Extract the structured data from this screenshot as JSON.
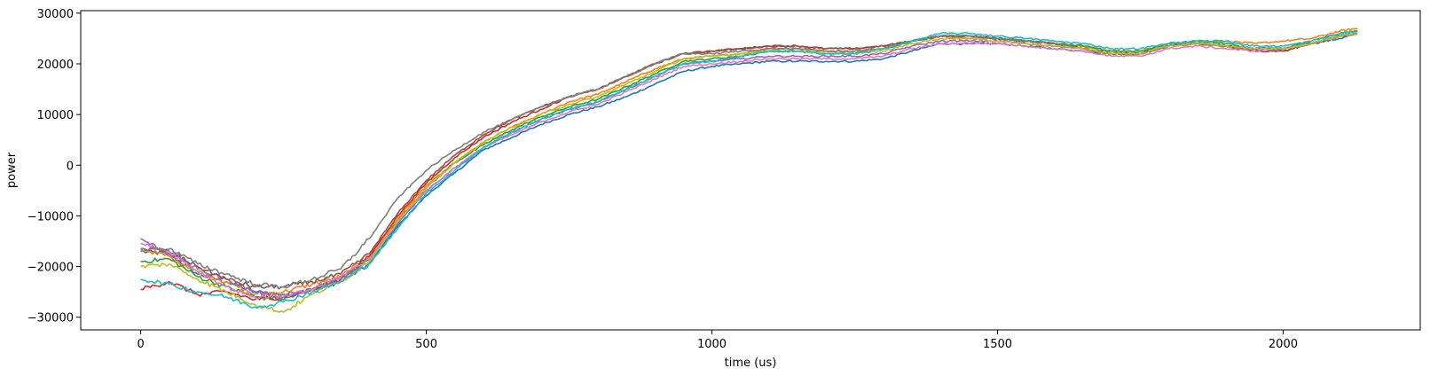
{
  "chart_data": {
    "type": "line",
    "title": "",
    "xlabel": "time (us)",
    "ylabel": "power",
    "xlim": [
      -105,
      2240
    ],
    "ylim": [
      -32500,
      30500
    ],
    "xticks": [
      0,
      500,
      1000,
      1500,
      2000
    ],
    "yticks": [
      -30000,
      -20000,
      -10000,
      0,
      10000,
      20000,
      30000
    ],
    "xtick_labels": [
      "0",
      "500",
      "1000",
      "1500",
      "2000"
    ],
    "ytick_labels": [
      "−30000",
      "−20000",
      "−10000",
      "0",
      "10000",
      "20000",
      "30000"
    ],
    "grid": false,
    "legend": "none",
    "series_count": 10,
    "colors": [
      "#1f77b4",
      "#ff7f0e",
      "#2ca02c",
      "#d62728",
      "#9467bd",
      "#8c564b",
      "#e377c2",
      "#7f7f7f",
      "#bcbd22",
      "#17becf"
    ],
    "x": [
      0,
      50,
      100,
      150,
      200,
      250,
      300,
      350,
      400,
      450,
      500,
      550,
      600,
      650,
      700,
      750,
      800,
      850,
      900,
      950,
      1000,
      1050,
      1100,
      1150,
      1200,
      1250,
      1300,
      1350,
      1400,
      1450,
      1500,
      1550,
      1600,
      1650,
      1700,
      1750,
      1800,
      1850,
      1900,
      1950,
      2000,
      2050,
      2100,
      2130
    ],
    "series": [
      {
        "values": [
          -17000,
          -17500,
          -21500,
          -23000,
          -25000,
          -25500,
          -24500,
          -23000,
          -19500,
          -12000,
          -6000,
          -1500,
          3000,
          5500,
          8000,
          10000,
          11500,
          13500,
          16000,
          18500,
          19500,
          20000,
          20500,
          20500,
          20500,
          20500,
          21000,
          22500,
          24000,
          24000,
          24000,
          23500,
          23000,
          22500,
          22000,
          22000,
          23500,
          24000,
          23500,
          23000,
          23000,
          24000,
          25000,
          26000
        ]
      },
      {
        "values": [
          -16500,
          -18000,
          -21000,
          -23000,
          -25500,
          -25000,
          -23500,
          -22000,
          -18000,
          -10500,
          -4000,
          500,
          4500,
          7500,
          10000,
          12500,
          14000,
          16500,
          19000,
          21000,
          21500,
          22000,
          23000,
          23000,
          22500,
          22500,
          23000,
          24500,
          25500,
          25000,
          25000,
          24500,
          24000,
          23500,
          22500,
          22500,
          24000,
          24500,
          24500,
          24000,
          24500,
          25000,
          26500,
          27000
        ]
      },
      {
        "values": [
          -19000,
          -18500,
          -22000,
          -24000,
          -26000,
          -26500,
          -24500,
          -22500,
          -18500,
          -11000,
          -4500,
          500,
          4000,
          7000,
          9500,
          11500,
          13000,
          15500,
          18000,
          20500,
          21000,
          21500,
          22500,
          22500,
          22000,
          22000,
          23000,
          24500,
          25500,
          25500,
          25000,
          24500,
          24000,
          23500,
          22500,
          22500,
          24000,
          24500,
          24000,
          23000,
          23000,
          24500,
          26000,
          26500
        ]
      },
      {
        "values": [
          -24500,
          -23000,
          -25500,
          -25000,
          -26500,
          -26000,
          -24500,
          -22500,
          -18000,
          -10000,
          -3500,
          1500,
          5500,
          8500,
          11000,
          13500,
          15000,
          17500,
          20000,
          22000,
          22500,
          23000,
          23500,
          23500,
          23000,
          23000,
          23500,
          24500,
          25500,
          25500,
          25000,
          24500,
          24000,
          23000,
          22000,
          22000,
          23500,
          24000,
          23500,
          22500,
          22500,
          24000,
          25500,
          26000
        ]
      },
      {
        "values": [
          -14500,
          -17500,
          -20500,
          -22500,
          -25000,
          -26000,
          -24500,
          -22500,
          -19000,
          -11500,
          -5000,
          -500,
          3500,
          6500,
          9000,
          11000,
          12500,
          15000,
          17500,
          20000,
          20500,
          21000,
          21500,
          21500,
          21500,
          21500,
          22000,
          23500,
          24500,
          24500,
          24500,
          24000,
          23500,
          23000,
          22000,
          22000,
          23500,
          24000,
          23500,
          23000,
          23000,
          24000,
          25500,
          26000
        ]
      },
      {
        "values": [
          -16500,
          -17000,
          -20000,
          -22500,
          -24000,
          -24000,
          -23000,
          -21500,
          -17500,
          -9500,
          -3000,
          2000,
          6000,
          9000,
          11500,
          13500,
          15000,
          17500,
          20000,
          22000,
          22500,
          23000,
          23500,
          23500,
          23000,
          23000,
          23500,
          24500,
          25500,
          25500,
          25000,
          24500,
          24000,
          23000,
          22000,
          22000,
          23500,
          24000,
          23500,
          22500,
          22500,
          24000,
          25500,
          26000
        ]
      },
      {
        "values": [
          -15500,
          -17000,
          -21000,
          -24000,
          -26000,
          -26000,
          -24500,
          -22000,
          -18500,
          -11000,
          -5000,
          -500,
          3500,
          6000,
          8500,
          10500,
          12000,
          14500,
          17000,
          19500,
          20000,
          20500,
          21000,
          21000,
          21000,
          21000,
          21500,
          23000,
          24000,
          24000,
          24000,
          23500,
          23000,
          22500,
          21500,
          21500,
          23000,
          23500,
          23000,
          22500,
          23000,
          24000,
          25500,
          26000
        ]
      },
      {
        "values": [
          -16500,
          -16500,
          -19500,
          -21500,
          -23500,
          -24000,
          -22500,
          -20500,
          -14500,
          -6500,
          -1000,
          3000,
          6500,
          9000,
          11500,
          13500,
          15000,
          17500,
          20000,
          22000,
          22000,
          22500,
          23000,
          23000,
          22500,
          22500,
          23000,
          24500,
          25500,
          25500,
          25000,
          24500,
          24000,
          23000,
          22000,
          22000,
          23500,
          24000,
          23500,
          23000,
          23000,
          24000,
          25500,
          26000
        ]
      },
      {
        "values": [
          -20000,
          -19500,
          -22500,
          -25000,
          -27500,
          -29000,
          -25500,
          -23000,
          -19000,
          -11000,
          -4500,
          500,
          4500,
          7500,
          10000,
          12000,
          13500,
          16000,
          18500,
          21000,
          21500,
          22000,
          22500,
          22500,
          22000,
          22000,
          22500,
          24000,
          25000,
          25000,
          24500,
          24000,
          23500,
          23000,
          22000,
          22000,
          23500,
          24000,
          23500,
          23000,
          23000,
          24000,
          25500,
          26000
        ]
      },
      {
        "values": [
          -22500,
          -23500,
          -25000,
          -26000,
          -28000,
          -27000,
          -25000,
          -23000,
          -19500,
          -12500,
          -5500,
          -1000,
          3500,
          6500,
          9000,
          11000,
          12500,
          15000,
          17500,
          20000,
          20500,
          21500,
          22500,
          22500,
          22000,
          22000,
          23000,
          24500,
          26000,
          26000,
          25500,
          25000,
          24500,
          24000,
          23000,
          23000,
          24000,
          24500,
          24500,
          23500,
          23500,
          24500,
          26000,
          26500
        ]
      }
    ]
  }
}
